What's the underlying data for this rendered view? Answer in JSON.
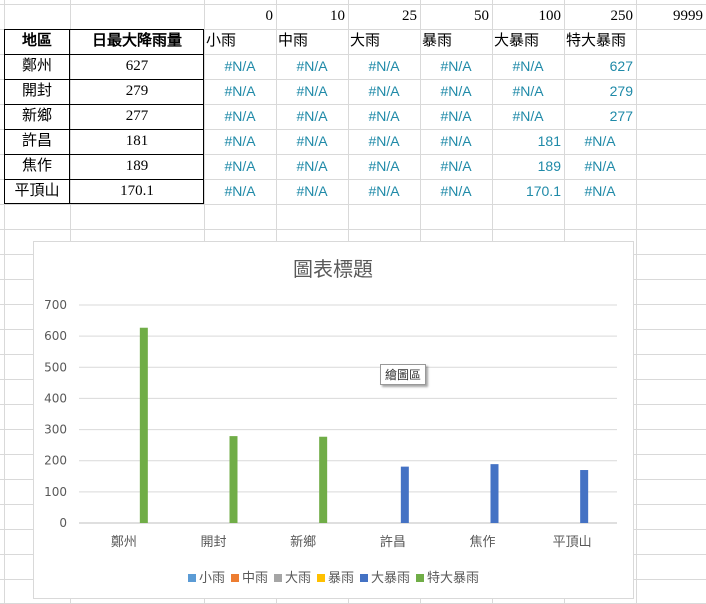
{
  "header_numbers": [
    "0",
    "10",
    "25",
    "50",
    "100",
    "250",
    "9999"
  ],
  "table": {
    "col1_header": "地區",
    "col2_header": "日最大降雨量",
    "rows": [
      {
        "region": "鄭州",
        "value": "627"
      },
      {
        "region": "開封",
        "value": "279"
      },
      {
        "region": "新鄉",
        "value": "277"
      },
      {
        "region": "許昌",
        "value": "181"
      },
      {
        "region": "焦作",
        "value": "189"
      },
      {
        "region": "平頂山",
        "value": "170.1"
      }
    ]
  },
  "categories_header": [
    "小雨",
    "中雨",
    "大雨",
    "暴雨",
    "大暴雨",
    "特大暴雨"
  ],
  "lookup": [
    [
      "#N/A",
      "#N/A",
      "#N/A",
      "#N/A",
      "#N/A",
      "627"
    ],
    [
      "#N/A",
      "#N/A",
      "#N/A",
      "#N/A",
      "#N/A",
      "279"
    ],
    [
      "#N/A",
      "#N/A",
      "#N/A",
      "#N/A",
      "#N/A",
      "277"
    ],
    [
      "#N/A",
      "#N/A",
      "#N/A",
      "#N/A",
      "181",
      "#N/A"
    ],
    [
      "#N/A",
      "#N/A",
      "#N/A",
      "#N/A",
      "189",
      "#N/A"
    ],
    [
      "#N/A",
      "#N/A",
      "#N/A",
      "#N/A",
      "170.1",
      "#N/A"
    ]
  ],
  "tooltip": "繪圖區",
  "chart_data": {
    "type": "bar",
    "title": "圖表標題",
    "categories": [
      "鄭州",
      "開封",
      "新鄉",
      "許昌",
      "焦作",
      "平頂山"
    ],
    "ylim": [
      0,
      700
    ],
    "yticks": [
      0,
      100,
      200,
      300,
      400,
      500,
      600,
      700
    ],
    "grid": true,
    "legend_position": "bottom",
    "series": [
      {
        "name": "小雨",
        "color": "#5b9bd5",
        "values": [
          null,
          null,
          null,
          null,
          null,
          null
        ]
      },
      {
        "name": "中雨",
        "color": "#ed7d31",
        "values": [
          null,
          null,
          null,
          null,
          null,
          null
        ]
      },
      {
        "name": "大雨",
        "color": "#a5a5a5",
        "values": [
          null,
          null,
          null,
          null,
          null,
          null
        ]
      },
      {
        "name": "暴雨",
        "color": "#ffc000",
        "values": [
          null,
          null,
          null,
          null,
          null,
          null
        ]
      },
      {
        "name": "大暴雨",
        "color": "#4472c4",
        "values": [
          null,
          null,
          null,
          181,
          189,
          170.1
        ]
      },
      {
        "name": "特大暴雨",
        "color": "#70ad47",
        "values": [
          627,
          279,
          277,
          null,
          null,
          null
        ]
      }
    ]
  }
}
